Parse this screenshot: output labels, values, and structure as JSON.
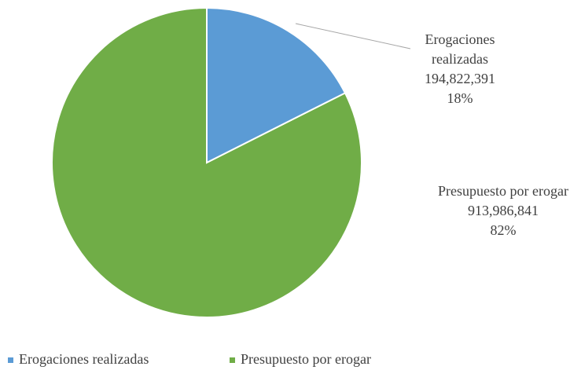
{
  "chart_data": {
    "type": "pie",
    "categories": [
      "Erogaciones realizadas",
      "Presupuesto por erogar"
    ],
    "values": [
      194822391,
      913986841
    ],
    "value_labels": [
      "194,822,391",
      "913,986,841"
    ],
    "percents": [
      18,
      82
    ],
    "percent_labels": [
      "18%",
      "82%"
    ],
    "colors": [
      "#5b9bd5",
      "#70ad47"
    ],
    "legend": "bottom"
  }
}
